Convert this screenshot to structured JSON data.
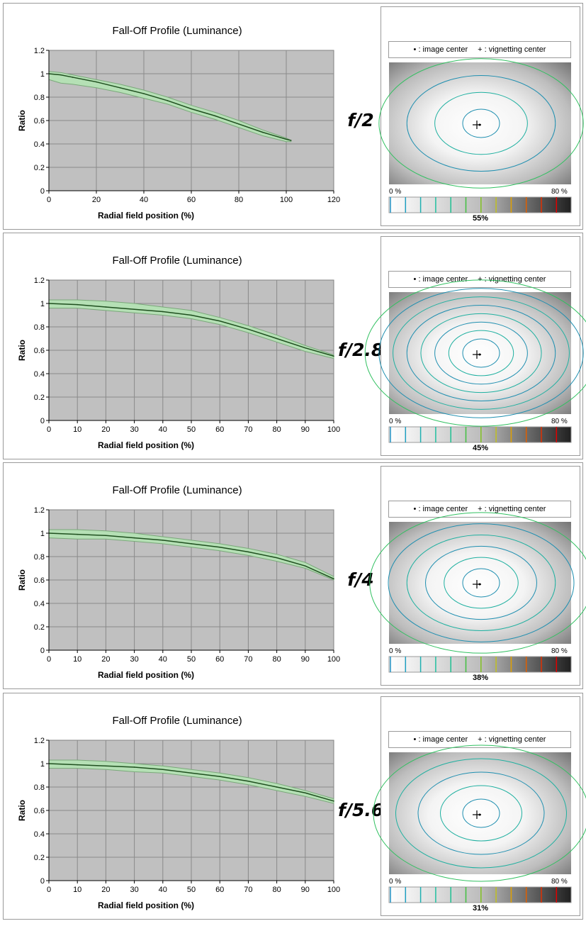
{
  "chart_data": [
    {
      "type": "line",
      "title": "Fall-Off Profile (Luminance)",
      "xlabel": "Radial field position (%)",
      "ylabel": "Ratio",
      "xlim": [
        0,
        120
      ],
      "ylim": [
        0,
        1.2
      ],
      "x_ticks": [
        "0",
        "20",
        "40",
        "60",
        "80",
        "100",
        "120"
      ],
      "y_ticks": [
        "0",
        "0.2",
        "0.4",
        "0.6",
        "0.8",
        "1",
        "1.2"
      ],
      "grid": true,
      "aperture": "f/2",
      "x": [
        0,
        5,
        10,
        20,
        30,
        40,
        50,
        60,
        70,
        80,
        90,
        100,
        102
      ],
      "values": [
        1.0,
        0.99,
        0.97,
        0.93,
        0.88,
        0.83,
        0.77,
        0.7,
        0.64,
        0.57,
        0.5,
        0.44,
        0.43
      ],
      "upper": [
        1.02,
        1.01,
        0.99,
        0.95,
        0.91,
        0.86,
        0.8,
        0.73,
        0.67,
        0.6,
        0.52,
        0.45,
        0.43
      ],
      "lower": [
        0.95,
        0.92,
        0.91,
        0.88,
        0.84,
        0.79,
        0.74,
        0.67,
        0.61,
        0.54,
        0.47,
        0.42,
        0.42
      ]
    },
    {
      "type": "line",
      "title": "Fall-Off Profile (Luminance)",
      "xlabel": "Radial field position (%)",
      "ylabel": "Ratio",
      "xlim": [
        0,
        100
      ],
      "ylim": [
        0,
        1.2
      ],
      "x_ticks": [
        "0",
        "10",
        "20",
        "30",
        "40",
        "50",
        "60",
        "70",
        "80",
        "90",
        "100"
      ],
      "y_ticks": [
        "0",
        "0.2",
        "0.4",
        "0.6",
        "0.8",
        "1",
        "1.2"
      ],
      "grid": true,
      "aperture": "f/2.8",
      "x": [
        0,
        10,
        20,
        30,
        40,
        50,
        60,
        70,
        80,
        90,
        100
      ],
      "values": [
        1.0,
        0.99,
        0.97,
        0.95,
        0.93,
        0.9,
        0.85,
        0.78,
        0.7,
        0.62,
        0.55
      ],
      "upper": [
        1.03,
        1.03,
        1.02,
        1.0,
        0.97,
        0.94,
        0.88,
        0.81,
        0.73,
        0.64,
        0.56
      ],
      "lower": [
        0.96,
        0.96,
        0.94,
        0.92,
        0.9,
        0.87,
        0.82,
        0.75,
        0.67,
        0.59,
        0.53
      ]
    },
    {
      "type": "line",
      "title": "Fall-Off Profile (Luminance)",
      "xlabel": "Radial field position (%)",
      "ylabel": "Ratio",
      "xlim": [
        0,
        100
      ],
      "ylim": [
        0,
        1.2
      ],
      "x_ticks": [
        "0",
        "10",
        "20",
        "30",
        "40",
        "50",
        "60",
        "70",
        "80",
        "90",
        "100"
      ],
      "y_ticks": [
        "0",
        "0.2",
        "0.4",
        "0.6",
        "0.8",
        "1",
        "1.2"
      ],
      "grid": true,
      "aperture": "f/4",
      "x": [
        0,
        10,
        20,
        30,
        40,
        50,
        60,
        70,
        80,
        90,
        100
      ],
      "values": [
        1.0,
        0.99,
        0.98,
        0.96,
        0.94,
        0.91,
        0.88,
        0.84,
        0.79,
        0.72,
        0.61
      ],
      "upper": [
        1.03,
        1.03,
        1.02,
        1.0,
        0.97,
        0.94,
        0.91,
        0.87,
        0.82,
        0.75,
        0.63
      ],
      "lower": [
        0.96,
        0.95,
        0.95,
        0.93,
        0.91,
        0.88,
        0.85,
        0.81,
        0.76,
        0.7,
        0.6
      ]
    },
    {
      "type": "line",
      "title": "Fall-Off Profile (Luminance)",
      "xlabel": "Radial field position (%)",
      "ylabel": "Ratio",
      "xlim": [
        0,
        100
      ],
      "ylim": [
        0,
        1.2
      ],
      "x_ticks": [
        "0",
        "10",
        "20",
        "30",
        "40",
        "50",
        "60",
        "70",
        "80",
        "90",
        "100"
      ],
      "y_ticks": [
        "0",
        "0.2",
        "0.4",
        "0.6",
        "0.8",
        "1",
        "1.2"
      ],
      "grid": true,
      "aperture": "f/5.6",
      "x": [
        0,
        10,
        20,
        30,
        40,
        50,
        60,
        70,
        80,
        90,
        100
      ],
      "values": [
        1.0,
        0.99,
        0.98,
        0.97,
        0.95,
        0.92,
        0.89,
        0.85,
        0.8,
        0.75,
        0.68
      ],
      "upper": [
        1.03,
        1.03,
        1.02,
        1.0,
        0.98,
        0.95,
        0.92,
        0.88,
        0.83,
        0.77,
        0.7
      ],
      "lower": [
        0.96,
        0.96,
        0.95,
        0.93,
        0.92,
        0.89,
        0.86,
        0.82,
        0.77,
        0.72,
        0.66
      ]
    }
  ],
  "vignetting_panels": [
    {
      "legend": {
        "image_center_symbol": "•",
        "image_center_label": ": image center",
        "vignetting_center_symbol": "+",
        "vignetting_center_label": ": vignetting center"
      },
      "scale_min_label": "0 %",
      "scale_max_label": "80 %",
      "percent": "55%",
      "contour_count": 4
    },
    {
      "legend": {
        "image_center_symbol": "•",
        "image_center_label": ": image center",
        "vignetting_center_symbol": "+",
        "vignetting_center_label": ": vignetting center"
      },
      "scale_min_label": "0 %",
      "scale_max_label": "80 %",
      "percent": "45%",
      "contour_count": 8
    },
    {
      "legend": {
        "image_center_symbol": "•",
        "image_center_label": ": image center",
        "vignetting_center_symbol": "+",
        "vignetting_center_label": ": vignetting center"
      },
      "scale_min_label": "0 %",
      "scale_max_label": "80 %",
      "percent": "38%",
      "contour_count": 6
    },
    {
      "legend": {
        "image_center_symbol": "•",
        "image_center_label": ": image center",
        "vignetting_center_symbol": "+",
        "vignetting_center_label": ": vignetting center"
      },
      "scale_min_label": "0 %",
      "scale_max_label": "80 %",
      "percent": "31%",
      "contour_count": 5
    }
  ],
  "colors": {
    "plot_bg": "#c0c0c0",
    "band_fill": "#b5e0b5",
    "band_edge": "#7aa87a",
    "line": "#1f4f1f",
    "grid": "#8a8a8a",
    "scale": [
      "#1f8fc0",
      "#1f9fc0",
      "#1fafb0",
      "#1fbfa0",
      "#1fc090",
      "#40c040",
      "#80c020",
      "#c0c020",
      "#e0a000",
      "#e06000",
      "#e03000",
      "#e00000"
    ]
  }
}
